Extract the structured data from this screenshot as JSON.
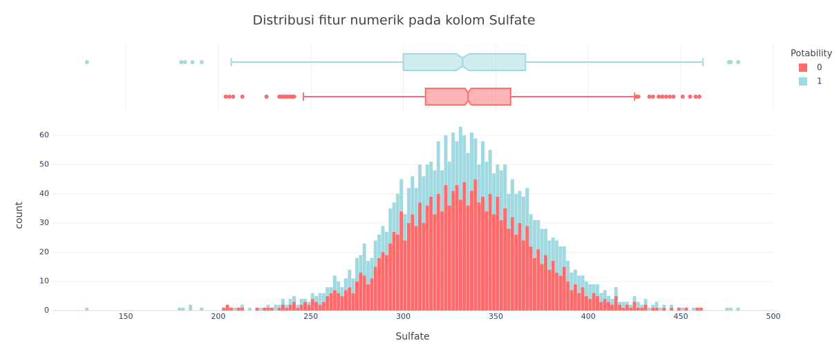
{
  "chart_data": {
    "type": "histogram",
    "title": "Distribusi fitur numerik pada kolom Sulfate",
    "x_label": "Sulfate",
    "y_label": "count",
    "legend_title": "Potability",
    "legend_position": "right",
    "grid": true,
    "xlim": [
      110,
      500
    ],
    "ylim": [
      0,
      65
    ],
    "xticks": [
      150,
      200,
      250,
      300,
      350,
      400,
      450,
      500
    ],
    "yticks": [
      0,
      10,
      20,
      30,
      40,
      50,
      60
    ],
    "bins": [
      128,
      130,
      132,
      134,
      136,
      138,
      140,
      142,
      144,
      146,
      148,
      150,
      152,
      154,
      156,
      158,
      160,
      162,
      164,
      166,
      168,
      170,
      172,
      174,
      176,
      178,
      180,
      182,
      184,
      186,
      188,
      190,
      192,
      194,
      196,
      198,
      200,
      202,
      204,
      206,
      208,
      210,
      212,
      214,
      216,
      218,
      220,
      222,
      224,
      226,
      228,
      230,
      232,
      234,
      236,
      238,
      240,
      242,
      244,
      246,
      248,
      250,
      252,
      254,
      256,
      258,
      260,
      262,
      264,
      266,
      268,
      270,
      272,
      274,
      276,
      278,
      280,
      282,
      284,
      286,
      288,
      290,
      292,
      294,
      296,
      298,
      300,
      302,
      304,
      306,
      308,
      310,
      312,
      314,
      316,
      318,
      320,
      322,
      324,
      326,
      328,
      330,
      332,
      334,
      336,
      338,
      340,
      342,
      344,
      346,
      348,
      350,
      352,
      354,
      356,
      358,
      360,
      362,
      364,
      366,
      368,
      370,
      372,
      374,
      376,
      378,
      380,
      382,
      384,
      386,
      388,
      390,
      392,
      394,
      396,
      398,
      400,
      402,
      404,
      406,
      408,
      410,
      412,
      414,
      416,
      418,
      420,
      422,
      424,
      426,
      428,
      430,
      432,
      434,
      436,
      438,
      440,
      442,
      444,
      446,
      448,
      450,
      452,
      454,
      456,
      458,
      460,
      462,
      464,
      466,
      468,
      470,
      472,
      474,
      476,
      478,
      480,
      482
    ],
    "series": [
      {
        "name": "0",
        "color": "#FF6B6B",
        "values": [
          0,
          0,
          0,
          0,
          0,
          0,
          0,
          0,
          0,
          0,
          0,
          0,
          0,
          0,
          0,
          0,
          0,
          0,
          0,
          0,
          0,
          0,
          0,
          0,
          0,
          0,
          0,
          0,
          0,
          0,
          0,
          0,
          0,
          0,
          0,
          0,
          0,
          1,
          2,
          1,
          0,
          1,
          1,
          0,
          0,
          0,
          1,
          0,
          1,
          1,
          1,
          0,
          1,
          2,
          1,
          2,
          3,
          1,
          2,
          3,
          2,
          4,
          3,
          2,
          3,
          5,
          6,
          7,
          6,
          5,
          7,
          8,
          6,
          10,
          13,
          12,
          9,
          11,
          15,
          18,
          20,
          19,
          23,
          27,
          26,
          34,
          24,
          30,
          33,
          29,
          37,
          30,
          36,
          39,
          33,
          40,
          34,
          43,
          36,
          41,
          43,
          38,
          44,
          36,
          41,
          45,
          37,
          39,
          34,
          40,
          33,
          39,
          31,
          35,
          28,
          32,
          26,
          30,
          24,
          29,
          22,
          18,
          21,
          16,
          19,
          14,
          17,
          13,
          12,
          15,
          10,
          7,
          9,
          6,
          8,
          5,
          4,
          6,
          5,
          3,
          4,
          3,
          2,
          5,
          2,
          1,
          2,
          1,
          3,
          1,
          1,
          2,
          0,
          1,
          1,
          0,
          1,
          0,
          1,
          0,
          1,
          0,
          1,
          0,
          0,
          1,
          1,
          0,
          0,
          0,
          0,
          0,
          0,
          0,
          0,
          0,
          0
        ],
        "box": {
          "lowerfence": 246,
          "q1": 312,
          "median": 335,
          "q3": 358,
          "upperfence": 425,
          "outliers": [
            204,
            206,
            208,
            213,
            226,
            233,
            234,
            235,
            236,
            237,
            238,
            239,
            240,
            241,
            426,
            427,
            433,
            435,
            438,
            440,
            442,
            444,
            446,
            451,
            455,
            458,
            460
          ]
        }
      },
      {
        "name": "1",
        "color": "#A1D9E0",
        "values": [
          1,
          0,
          0,
          0,
          0,
          0,
          0,
          0,
          0,
          0,
          0,
          0,
          0,
          0,
          0,
          0,
          0,
          0,
          0,
          0,
          0,
          0,
          0,
          0,
          0,
          1,
          1,
          0,
          2,
          0,
          0,
          1,
          0,
          0,
          0,
          0,
          0,
          0,
          0,
          0,
          1,
          0,
          1,
          0,
          1,
          0,
          0,
          1,
          0,
          1,
          0,
          2,
          1,
          2,
          1,
          2,
          2,
          1,
          2,
          1,
          1,
          2,
          2,
          4,
          3,
          3,
          2,
          5,
          4,
          3,
          4,
          6,
          5,
          8,
          6,
          11,
          8,
          7,
          9,
          8,
          9,
          8,
          12,
          10,
          14,
          11,
          9,
          12,
          13,
          13,
          13,
          16,
          14,
          12,
          15,
          18,
          14,
          17,
          15,
          20,
          15,
          25,
          16,
          18,
          20,
          14,
          13,
          19,
          17,
          15,
          14,
          11,
          17,
          15,
          12,
          13,
          14,
          11,
          15,
          13,
          11,
          13,
          10,
          12,
          9,
          10,
          8,
          11,
          10,
          7,
          7,
          6,
          5,
          6,
          4,
          5,
          5,
          3,
          4,
          3,
          3,
          2,
          2,
          3,
          1,
          2,
          1,
          1,
          2,
          2,
          1,
          2,
          1,
          1,
          2,
          1,
          1,
          0,
          1,
          0,
          0,
          1,
          0,
          0,
          1,
          0,
          0,
          0,
          0,
          0,
          0,
          0,
          0,
          1,
          1,
          0,
          1
        ],
        "box": {
          "lowerfence": 207,
          "q1": 300,
          "median": 332,
          "q3": 366,
          "upperfence": 462,
          "outliers": [
            129,
            180,
            182,
            186,
            191,
            476,
            477,
            481
          ]
        }
      }
    ]
  }
}
